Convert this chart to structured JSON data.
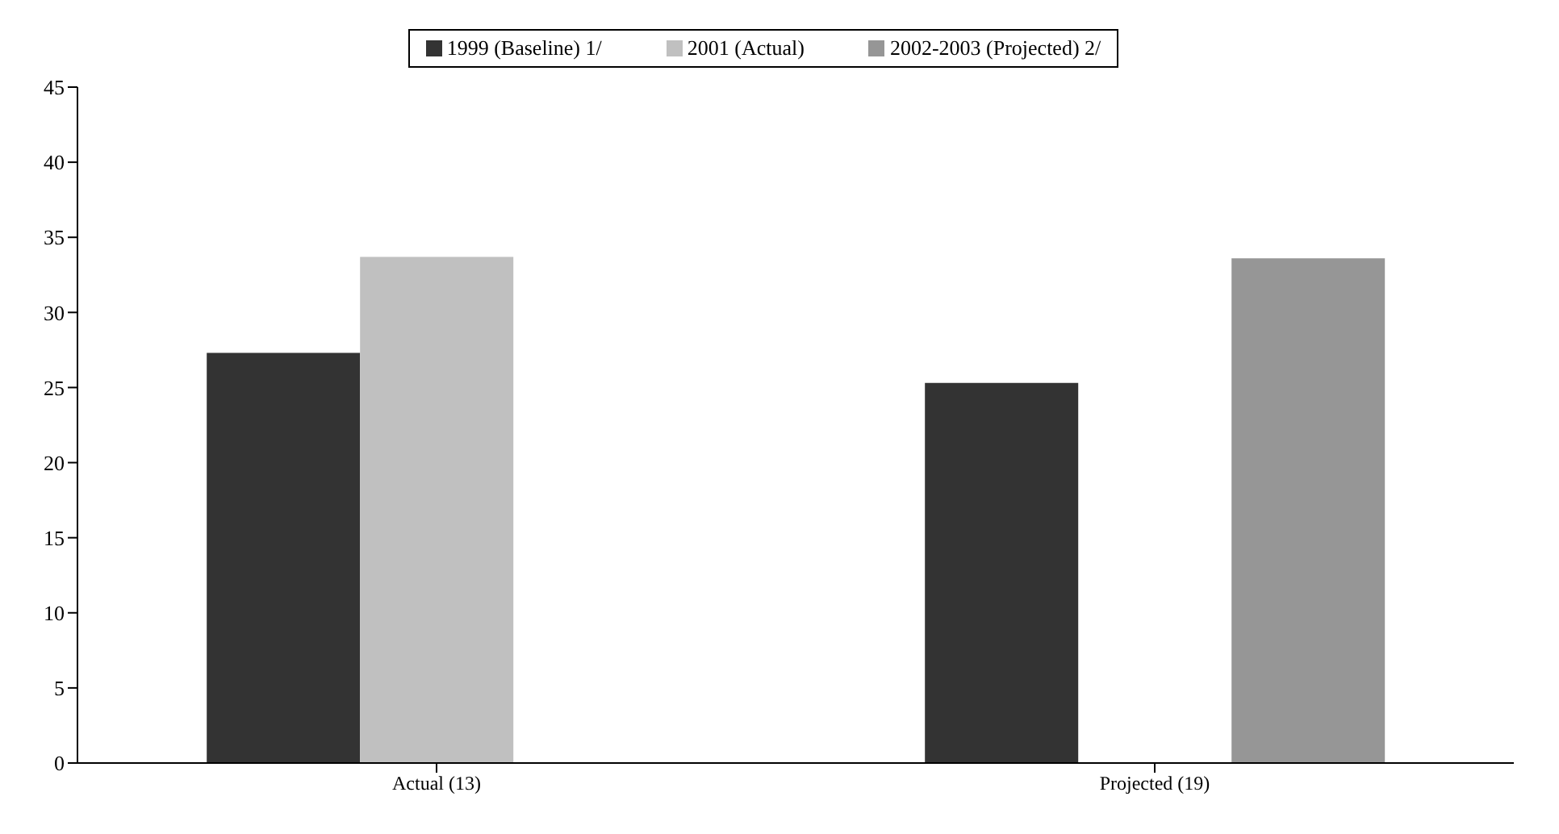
{
  "chart_data": {
    "type": "bar",
    "categories": [
      "Actual (13)",
      "Projected (19)"
    ],
    "series": [
      {
        "name": "1999 (Baseline) 1/",
        "color": "#333333",
        "values": [
          27.3,
          25.3
        ]
      },
      {
        "name": "2001 (Actual)",
        "color": "#c0c0c0",
        "values": [
          33.7,
          null
        ]
      },
      {
        "name": "2002-2003 (Projected) 2/",
        "color": "#969696",
        "values": [
          null,
          33.6
        ]
      }
    ],
    "ylim": [
      0,
      45
    ],
    "yticks": [
      0,
      5,
      10,
      15,
      20,
      25,
      30,
      35,
      40,
      45
    ],
    "grid": false,
    "legend": "top"
  }
}
